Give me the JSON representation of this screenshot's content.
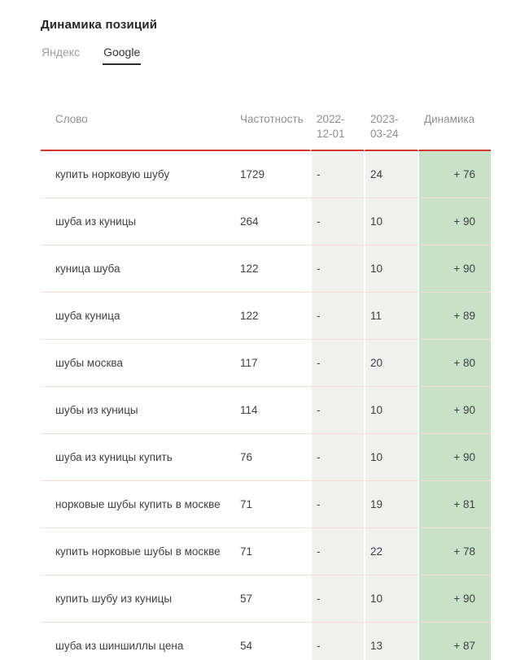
{
  "page": {
    "title": "Динамика позиций"
  },
  "tabs": [
    {
      "label": "Яндекс",
      "active": false
    },
    {
      "label": "Google",
      "active": true
    }
  ],
  "table": {
    "columns": [
      "Слово",
      "Частотность",
      "2022-12-01",
      "2023-03-24",
      "Динамика"
    ],
    "rows": [
      {
        "word": "купить норковую шубу",
        "frequency": "1729",
        "date1": "-",
        "date2": "24",
        "dynamics": "+ 76"
      },
      {
        "word": "шуба из куницы",
        "frequency": "264",
        "date1": "-",
        "date2": "10",
        "dynamics": "+ 90"
      },
      {
        "word": "куница шуба",
        "frequency": "122",
        "date1": "-",
        "date2": "10",
        "dynamics": "+ 90"
      },
      {
        "word": "шуба куница",
        "frequency": "122",
        "date1": "-",
        "date2": "11",
        "dynamics": "+ 89"
      },
      {
        "word": "шубы москва",
        "frequency": "117",
        "date1": "-",
        "date2": "20",
        "dynamics": "+ 80"
      },
      {
        "word": "шубы из куницы",
        "frequency": "114",
        "date1": "-",
        "date2": "10",
        "dynamics": "+ 90"
      },
      {
        "word": "шуба из куницы купить",
        "frequency": "76",
        "date1": "-",
        "date2": "10",
        "dynamics": "+ 90"
      },
      {
        "word": "норковые шубы купить в москве",
        "frequency": "71",
        "date1": "-",
        "date2": "19",
        "dynamics": "+ 81"
      },
      {
        "word": "купить норковые шубы в москве",
        "frequency": "71",
        "date1": "-",
        "date2": "22",
        "dynamics": "+ 78"
      },
      {
        "word": "купить шубу из куницы",
        "frequency": "57",
        "date1": "-",
        "date2": "10",
        "dynamics": "+ 90"
      },
      {
        "word": "шуба из шиншиллы цена",
        "frequency": "54",
        "date1": "-",
        "date2": "13",
        "dynamics": "+ 87"
      }
    ]
  },
  "colors": {
    "accent_red": "#d0392e",
    "row_divider": "#f9dcd8",
    "date_column_bg": "#f0f0ef",
    "dynamics_positive_bg": "#c7e2c8",
    "header_text": "#8f8f8f",
    "body_text": "#3f3f3f",
    "inactive_tab_text": "#9b9b9b",
    "active_tab_text": "#333333"
  }
}
